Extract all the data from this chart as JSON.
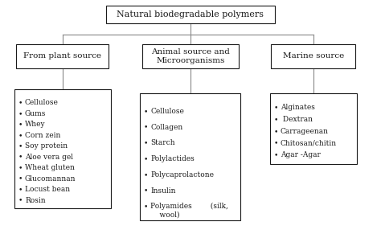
{
  "title": "Natural biodegradable polymers",
  "categories": [
    "From plant source",
    "Animal source and\nMicroorganisms",
    "Marine source"
  ],
  "plant_items": [
    "Cellulose",
    "Gums",
    "Whey",
    "Corn zein",
    "Soy protein",
    "Aloe vera gel",
    "Wheat gluten",
    "Glucomannan",
    "Locust bean",
    "Rosin"
  ],
  "animal_items": [
    "Cellulose",
    "Collagen",
    "Starch",
    "Polylactides",
    "Polycaprolactone",
    "Insulin",
    "Polyamides        (silk,\n    wool)"
  ],
  "marine_items": [
    "Alginates",
    " Dextran",
    "Carrageenan",
    "Chitosan/chitin",
    "Agar -Agar"
  ],
  "bg_color": "#ffffff",
  "box_edge_color": "#1a1a1a",
  "text_color": "#1a1a1a",
  "line_color": "#888888",
  "font_size": 6.5,
  "title_font_size": 8.0,
  "cat_font_size": 7.5
}
